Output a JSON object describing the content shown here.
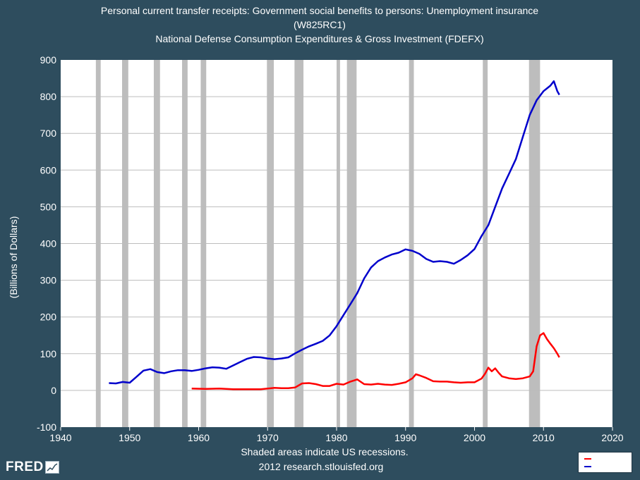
{
  "colors": {
    "background": "#2e4d5e",
    "plot_background": "#ffffff",
    "grid": "#bdbdbd",
    "recession": "#bdbdbd",
    "series_defense": "#ff0000",
    "series_unemployment": "#0000cc"
  },
  "title_lines": [
    "Personal current transfer receipts: Government social benefits to persons: Unemployment insurance",
    "(W825RC1)",
    "National Defense Consumption Expenditures & Gross Investment (FDEFX)"
  ],
  "footer": {
    "line1": "Shaded areas indicate US recessions.",
    "line2": "2012 research.stlouisfed.org"
  },
  "logo": {
    "text": "FRED",
    "icon": "fred-chart-icon"
  },
  "chart_data": {
    "type": "line",
    "ylabel": "(Billions of Dollars)",
    "xlabel": "",
    "xlim": [
      1940,
      2020
    ],
    "ylim": [
      -100,
      900
    ],
    "x_ticks": [
      1940,
      1950,
      1960,
      1970,
      1980,
      1990,
      2000,
      2010,
      2020
    ],
    "y_ticks": [
      -100,
      0,
      100,
      200,
      300,
      400,
      500,
      600,
      700,
      800,
      900
    ],
    "grid": true,
    "legend": "bottom-right",
    "recessions": [
      [
        1945.1,
        1945.8
      ],
      [
        1948.9,
        1949.8
      ],
      [
        1953.5,
        1954.4
      ],
      [
        1957.6,
        1958.4
      ],
      [
        1960.3,
        1961.1
      ],
      [
        1969.9,
        1970.9
      ],
      [
        1973.9,
        1975.2
      ],
      [
        1980.0,
        1980.5
      ],
      [
        1981.5,
        1982.9
      ],
      [
        1990.5,
        1991.2
      ],
      [
        2001.2,
        2001.9
      ],
      [
        2007.9,
        2009.5
      ]
    ],
    "series": [
      {
        "color": "#ff0000",
        "x": [
          1959,
          1961,
          1963,
          1965,
          1967,
          1969,
          1970,
          1971,
          1972,
          1973,
          1974,
          1975,
          1976,
          1977,
          1978,
          1979,
          1980,
          1981,
          1982,
          1983,
          1984,
          1985,
          1986,
          1987,
          1988,
          1989,
          1990,
          1991,
          1991.5,
          1992,
          1993,
          1994,
          1995,
          1996,
          1997,
          1998,
          1999,
          2000,
          2001,
          2001.5,
          2002,
          2002.5,
          2003,
          2003.5,
          2004,
          2005,
          2006,
          2007,
          2008,
          2008.5,
          2009,
          2009.5,
          2010,
          2010.5,
          2011,
          2011.5,
          2012,
          2012.3
        ],
        "values": [
          5,
          4,
          5,
          3,
          3,
          3,
          5,
          7,
          6,
          6,
          8,
          19,
          20,
          17,
          12,
          12,
          18,
          16,
          24,
          30,
          17,
          16,
          18,
          16,
          15,
          18,
          22,
          33,
          44,
          41,
          34,
          25,
          24,
          24,
          22,
          21,
          22,
          22,
          32,
          45,
          62,
          52,
          60,
          48,
          38,
          33,
          31,
          33,
          38,
          52,
          120,
          150,
          156,
          140,
          127,
          115,
          100,
          90
        ]
      },
      {
        "color": "#0000cc",
        "x": [
          1947,
          1948,
          1949,
          1950,
          1951,
          1952,
          1953,
          1954,
          1955,
          1956,
          1957,
          1958,
          1959,
          1960,
          1961,
          1962,
          1963,
          1964,
          1965,
          1966,
          1967,
          1968,
          1969,
          1970,
          1971,
          1972,
          1973,
          1974,
          1975,
          1976,
          1977,
          1978,
          1979,
          1980,
          1981,
          1982,
          1983,
          1984,
          1985,
          1986,
          1987,
          1988,
          1989,
          1990,
          1991,
          1992,
          1993,
          1994,
          1995,
          1996,
          1997,
          1998,
          1999,
          2000,
          2001,
          2002,
          2003,
          2004,
          2005,
          2006,
          2007,
          2008,
          2009,
          2010,
          2011,
          2011.5,
          2012,
          2012.3
        ],
        "values": [
          20,
          19,
          23,
          21,
          37,
          54,
          58,
          50,
          47,
          52,
          55,
          55,
          53,
          56,
          60,
          63,
          62,
          59,
          68,
          77,
          86,
          91,
          90,
          87,
          85,
          87,
          90,
          101,
          111,
          120,
          127,
          135,
          150,
          175,
          205,
          235,
          265,
          305,
          335,
          352,
          362,
          370,
          375,
          384,
          380,
          372,
          358,
          350,
          352,
          350,
          345,
          355,
          368,
          385,
          420,
          450,
          500,
          550,
          590,
          630,
          690,
          750,
          790,
          815,
          830,
          842,
          815,
          805
        ]
      }
    ]
  }
}
